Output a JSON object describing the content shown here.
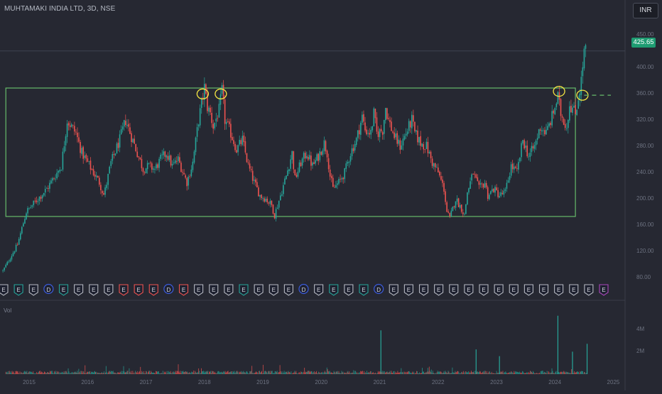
{
  "header": {
    "title": "MUHTAMAKI INDIA LTD, 3D, NSE",
    "currency": "INR",
    "last_price": "425.65"
  },
  "y_axis_labels": [
    "450.00",
    "400.00",
    "360.00",
    "320.00",
    "280.00",
    "240.00",
    "200.00",
    "160.00",
    "120.00",
    "80.00"
  ],
  "volume_panel": {
    "label": "Vol",
    "axis_labels": [
      "4M",
      "2M"
    ]
  },
  "x_axis_labels": [
    "2015",
    "2016",
    "2017",
    "2018",
    "2019",
    "2020",
    "2021",
    "2022",
    "2023",
    "2024",
    "2025"
  ],
  "event_markers": [
    "E",
    "E",
    "E",
    "D",
    "E",
    "E",
    "E",
    "E",
    "E",
    "E",
    "E",
    "D",
    "E",
    "E",
    "E",
    "E",
    "E",
    "E",
    "E",
    "E",
    "D",
    "E",
    "E",
    "E",
    "E",
    "D",
    "E",
    "E",
    "E",
    "E",
    "E",
    "E",
    "E",
    "E",
    "E",
    "E",
    "E",
    "E",
    "E",
    "E",
    "E"
  ],
  "colors": {
    "up": "#26a69a",
    "down": "#ef5350",
    "box": "#66bb6a",
    "annotation": "#f5e642",
    "event_grey": "#b5b8c1",
    "event_green": "#26a69a",
    "event_red": "#ef5350",
    "event_blue": "#3b5bdb",
    "event_purple": "#ab47bc"
  },
  "chart_data": {
    "type": "candlestick",
    "symbol": "MUHTAMAKI INDIA LTD",
    "interval": "3D",
    "exchange": "NSE",
    "currency": "INR",
    "last_price": 425.65,
    "y_range": [
      70,
      460
    ],
    "x_range": [
      2014.5,
      2025.2
    ],
    "close_path": [
      [
        2014.55,
        90
      ],
      [
        2014.8,
        130
      ],
      [
        2014.95,
        180
      ],
      [
        2015.1,
        195
      ],
      [
        2015.3,
        215
      ],
      [
        2015.55,
        250
      ],
      [
        2015.65,
        320
      ],
      [
        2015.8,
        300
      ],
      [
        2015.9,
        270
      ],
      [
        2016.0,
        255
      ],
      [
        2016.1,
        240
      ],
      [
        2016.2,
        225
      ],
      [
        2016.28,
        205
      ],
      [
        2016.4,
        255
      ],
      [
        2016.55,
        290
      ],
      [
        2016.65,
        320
      ],
      [
        2016.75,
        295
      ],
      [
        2016.85,
        270
      ],
      [
        2016.95,
        245
      ],
      [
        2017.05,
        250
      ],
      [
        2017.15,
        245
      ],
      [
        2017.25,
        260
      ],
      [
        2017.35,
        270
      ],
      [
        2017.45,
        250
      ],
      [
        2017.55,
        260
      ],
      [
        2017.7,
        225
      ],
      [
        2017.8,
        255
      ],
      [
        2017.9,
        320
      ],
      [
        2018.0,
        370
      ],
      [
        2018.05,
        340
      ],
      [
        2018.1,
        330
      ],
      [
        2018.15,
        310
      ],
      [
        2018.25,
        335
      ],
      [
        2018.3,
        365
      ],
      [
        2018.35,
        320
      ],
      [
        2018.45,
        300
      ],
      [
        2018.55,
        275
      ],
      [
        2018.65,
        290
      ],
      [
        2018.75,
        250
      ],
      [
        2018.85,
        225
      ],
      [
        2018.95,
        205
      ],
      [
        2019.05,
        200
      ],
      [
        2019.15,
        190
      ],
      [
        2019.2,
        175
      ],
      [
        2019.3,
        205
      ],
      [
        2019.4,
        235
      ],
      [
        2019.5,
        270
      ],
      [
        2019.55,
        230
      ],
      [
        2019.65,
        255
      ],
      [
        2019.75,
        270
      ],
      [
        2019.85,
        250
      ],
      [
        2019.95,
        265
      ],
      [
        2020.05,
        285
      ],
      [
        2020.1,
        270
      ],
      [
        2020.15,
        235
      ],
      [
        2020.2,
        215
      ],
      [
        2020.3,
        225
      ],
      [
        2020.4,
        240
      ],
      [
        2020.5,
        270
      ],
      [
        2020.6,
        290
      ],
      [
        2020.7,
        325
      ],
      [
        2020.75,
        305
      ],
      [
        2020.85,
        300
      ],
      [
        2020.9,
        330
      ],
      [
        2020.95,
        300
      ],
      [
        2021.05,
        305
      ],
      [
        2021.1,
        340
      ],
      [
        2021.15,
        320
      ],
      [
        2021.25,
        295
      ],
      [
        2021.35,
        280
      ],
      [
        2021.45,
        300
      ],
      [
        2021.55,
        320
      ],
      [
        2021.6,
        300
      ],
      [
        2021.7,
        285
      ],
      [
        2021.8,
        280
      ],
      [
        2021.9,
        255
      ],
      [
        2022.0,
        240
      ],
      [
        2022.1,
        215
      ],
      [
        2022.15,
        180
      ],
      [
        2022.2,
        170
      ],
      [
        2022.3,
        200
      ],
      [
        2022.4,
        185
      ],
      [
        2022.45,
        175
      ],
      [
        2022.5,
        210
      ],
      [
        2022.6,
        240
      ],
      [
        2022.7,
        215
      ],
      [
        2022.8,
        225
      ],
      [
        2022.85,
        205
      ],
      [
        2022.95,
        215
      ],
      [
        2023.05,
        205
      ],
      [
        2023.15,
        210
      ],
      [
        2023.25,
        250
      ],
      [
        2023.35,
        240
      ],
      [
        2023.45,
        290
      ],
      [
        2023.55,
        265
      ],
      [
        2023.65,
        280
      ],
      [
        2023.75,
        310
      ],
      [
        2023.85,
        300
      ],
      [
        2023.95,
        325
      ],
      [
        2024.05,
        355
      ],
      [
        2024.1,
        330
      ],
      [
        2024.2,
        310
      ],
      [
        2024.25,
        345
      ],
      [
        2024.35,
        330
      ],
      [
        2024.45,
        380
      ],
      [
        2024.5,
        425
      ],
      [
        2024.55,
        425
      ]
    ],
    "support_resistance_box": {
      "x_start": 2014.6,
      "x_end": 2024.35,
      "y_low": 173,
      "y_high": 369
    },
    "annotated_points": [
      {
        "date": 2017.97,
        "price": 360
      },
      {
        "date": 2018.28,
        "price": 360
      },
      {
        "date": 2024.07,
        "price": 364
      },
      {
        "date": 2024.47,
        "price": 358
      }
    ],
    "breakout_line": {
      "price": 358,
      "style": "dashed"
    },
    "volume": {
      "typical": 0.2,
      "spikes": [
        {
          "date": 2021.02,
          "value": 3.9
        },
        {
          "date": 2022.65,
          "value": 2.2
        },
        {
          "date": 2023.05,
          "value": 1.6
        },
        {
          "date": 2024.05,
          "value": 5.2
        },
        {
          "date": 2024.3,
          "value": 2.0
        },
        {
          "date": 2024.55,
          "value": 2.7
        }
      ]
    }
  }
}
